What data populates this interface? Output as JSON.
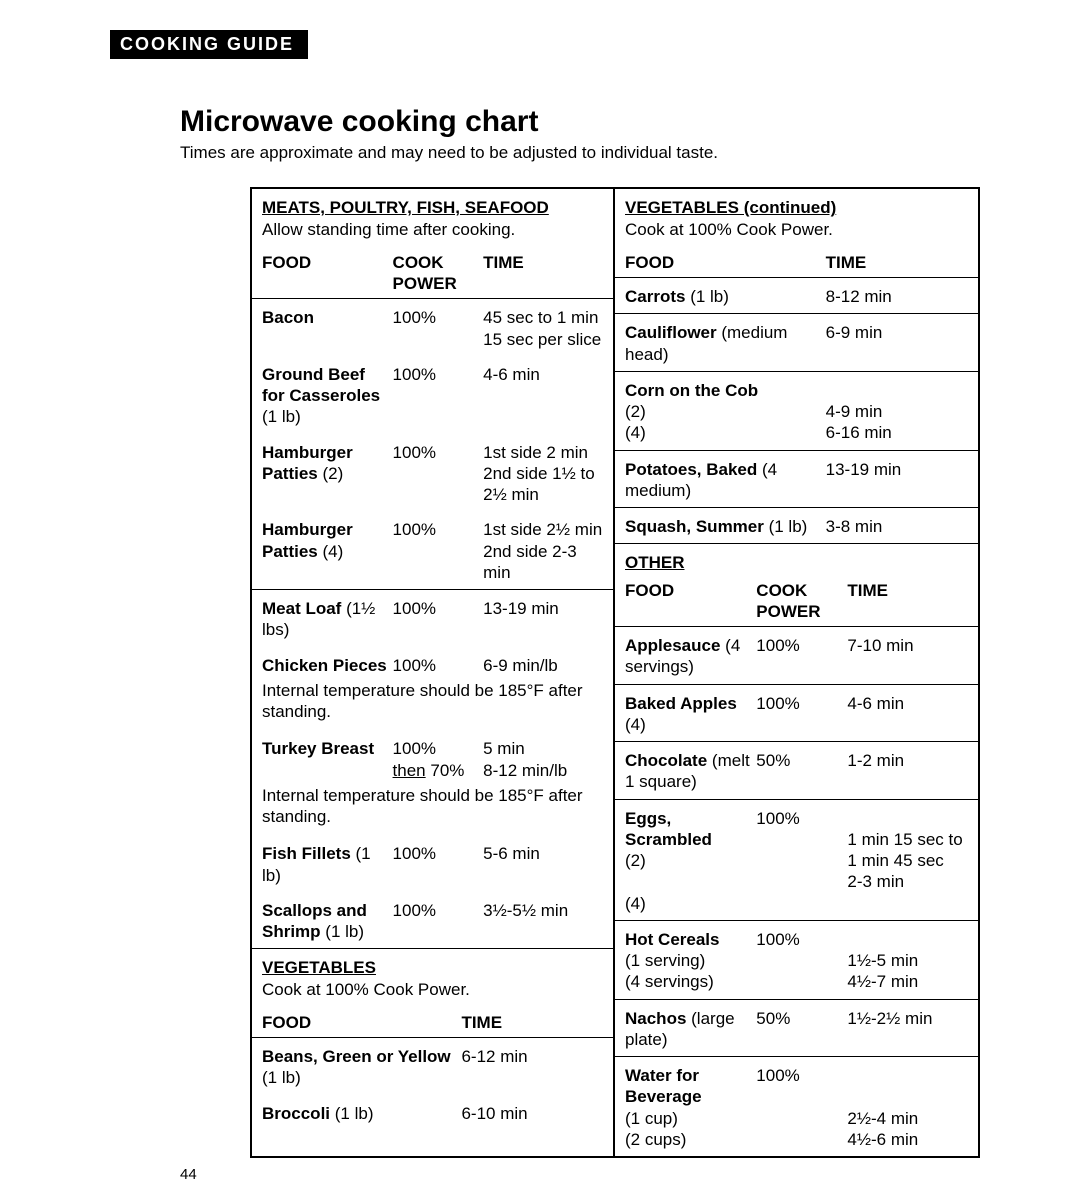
{
  "header_label": "COOKING GUIDE",
  "title": "Microwave cooking chart",
  "subtitle": "Times are approximate and may need to be adjusted to individual taste.",
  "page_number": "44",
  "left": {
    "meats": {
      "title": "MEATS, POULTRY, FISH, SEAFOOD",
      "sub": "Allow standing time after cooking.",
      "hdr_food": "FOOD",
      "hdr_power": "COOK POWER",
      "hdr_time": "TIME",
      "rows": {
        "bacon": {
          "food_b": "Bacon",
          "power": "100%",
          "time": "45 sec to 1 min 15 sec per slice"
        },
        "ground_beef": {
          "food_b": "Ground Beef for Casseroles",
          "food_n": " (1 lb)",
          "power": "100%",
          "time": "4-6 min"
        },
        "hp2": {
          "food_b": "Hamburger Patties",
          "food_n": " (2)",
          "power": "100%",
          "time": "1st side 2 min 2nd side 1½ to 2½ min"
        },
        "hp4": {
          "food_b": "Hamburger Patties",
          "food_n": " (4)",
          "power": "100%",
          "time": "1st side 2½ min 2nd side 2-3 min"
        },
        "meatloaf": {
          "food_b": "Meat Loaf",
          "food_n": " (1½ lbs)",
          "power": "100%",
          "time": "13-19 min"
        },
        "chicken": {
          "food_b": "Chicken Pieces",
          "power": "100%",
          "time": "6-9 min/lb"
        },
        "turkey": {
          "food_b": "Turkey Breast",
          "power1": "100%",
          "time1": "5 min",
          "power2_u": "then",
          "power2_n": " 70%",
          "time2": "8-12 min/lb"
        },
        "fish": {
          "food_b": "Fish Fillets",
          "food_n": " (1 lb)",
          "power": "100%",
          "time": "5-6 min"
        },
        "scallops": {
          "food_b": "Scallops and Shrimp",
          "food_n": " (1 lb)",
          "power": "100%",
          "time": "3½-5½ min"
        }
      },
      "note_185": "Internal temperature should be 185°F after standing."
    },
    "veg": {
      "title": "VEGETABLES",
      "sub": "Cook at 100% Cook Power.",
      "hdr_food": "FOOD",
      "hdr_time": "TIME",
      "rows": {
        "beans": {
          "food_b": "Beans, Green or Yellow",
          "food_n": " (1 lb)",
          "time": "6-12 min"
        },
        "broccoli": {
          "food_b": "Broccoli",
          "food_n": " (1 lb)",
          "time": "6-10 min"
        }
      }
    }
  },
  "right": {
    "veg_cont": {
      "title": "VEGETABLES  (continued)",
      "sub": "Cook at 100% Cook Power.",
      "hdr_food": "FOOD",
      "hdr_time": "TIME",
      "rows": {
        "carrots": {
          "food_b": "Carrots",
          "food_n": " (1 lb)",
          "time": "8-12 min"
        },
        "cauliflower": {
          "food_b": "Cauliflower",
          "food_n": " (medium head)",
          "time": "6-9 min"
        },
        "corn": {
          "food_b": "Corn on the Cob",
          "n2": "(2)",
          "t2": "4-9 min",
          "n4": "(4)",
          "t4": "6-16 min"
        },
        "potatoes": {
          "food_b": "Potatoes, Baked",
          "food_n": " (4 medium)",
          "time": "13-19 min"
        },
        "squash": {
          "food_b": "Squash, Summer",
          "food_n": " (1 lb)",
          "time": "3-8 min"
        }
      }
    },
    "other": {
      "title": "OTHER",
      "hdr_food": "FOOD",
      "hdr_power": "COOK POWER",
      "hdr_time": "TIME",
      "rows": {
        "applesauce": {
          "food_b": "Applesauce",
          "food_n": " (4 servings)",
          "power": "100%",
          "time": "7-10 min"
        },
        "baked_apples": {
          "food_b": "Baked Apples",
          "food_n": " (4)",
          "power": "100%",
          "time": "4-6 min"
        },
        "chocolate": {
          "food_b": "Chocolate",
          "food_n": " (melt 1 square)",
          "power": "50%",
          "time": "1-2 min"
        },
        "eggs": {
          "food_b": "Eggs, Scrambled",
          "power": "100%",
          "n2": "(2)",
          "t2": "1 min 15 sec to 1 min 45 sec",
          "n4": "(4)",
          "t4": "2-3 min"
        },
        "cereal": {
          "food_b": "Hot Cereals",
          "power": "100%",
          "n1": "(1 serving)",
          "t1": "1½-5 min",
          "n4": "(4 servings)",
          "t4": "4½-7 min"
        },
        "nachos": {
          "food_b": "Nachos",
          "food_n": " (large plate)",
          "power": "50%",
          "time": "1½-2½ min"
        },
        "water": {
          "food_b": "Water for Beverage",
          "power": "100%",
          "n1": "(1 cup)",
          "t1": "2½-4 min",
          "n2": "(2 cups)",
          "t2": "4½-6 min"
        }
      }
    }
  }
}
